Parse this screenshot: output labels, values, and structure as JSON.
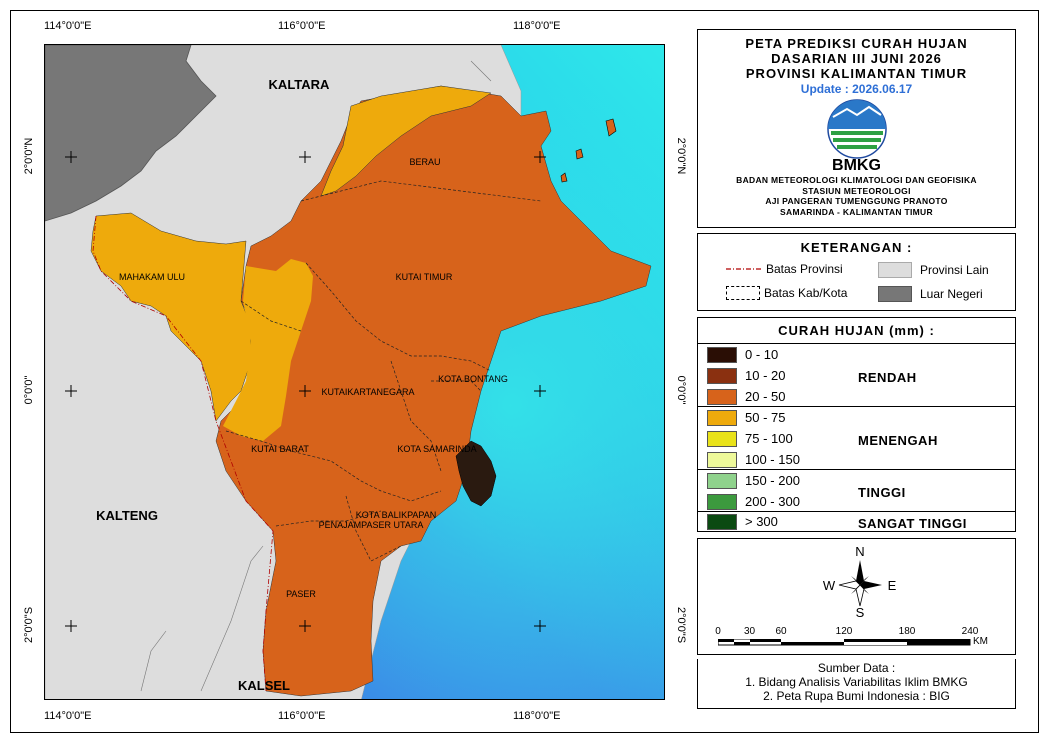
{
  "map": {
    "coords_top": [
      "114°0'0\"E",
      "116°0'0\"E",
      "118°0'0\"E"
    ],
    "coords_bottom": [
      "114°0'0\"E",
      "116°0'0\"E",
      "118°0'0\"E"
    ],
    "coords_left": [
      "2°0'0\"N",
      "0°0'0\"",
      "2°0'0\"S"
    ],
    "coords_right": [
      "2°0'0\"N",
      "0°0'0\"",
      "2°0'0\"S"
    ],
    "provinces": {
      "kaltara": "KALTARA",
      "kalteng": "KALTENG",
      "kalsel": "KALSEL"
    },
    "regencies": {
      "berau": "BERAU",
      "mahakam_ulu": "MAHAKAM ULU",
      "kutai_timur": "KUTAI TIMUR",
      "kutai_kartanegara": "KUTAIKARTANEGARA",
      "kota_bontang": "KOTA BONTANG",
      "kutai_barat": "KUTAI BARAT",
      "kota_samarinda": "KOTA SAMARINDA",
      "kota_balikpapan": "KOTA BALIKPAPAN",
      "penajam_paser_utara": "PENAJAMPASER UTARA",
      "paser": "PASER"
    },
    "colors": {
      "rain_20_50": "#d7631b",
      "rain_50_75": "#eeaa0c",
      "other_province": "#dddddd",
      "foreign_country": "#777777",
      "sea_deep": "#3b86e8",
      "sea_shallow": "#2ee8ea"
    }
  },
  "title": {
    "line1": "PETA PREDIKSI CURAH HUJAN",
    "line2": "DASARIAN III JUNI 2026",
    "line3": "PROVINSI KALIMANTAN TIMUR",
    "update": "Update : 2026.06.17",
    "logo_text": "BMKG",
    "inst1": "BADAN METEOROLOGI KLIMATOLOGI DAN GEOFISIKA",
    "inst2": "STASIUN METEOROLOGI",
    "inst3": "AJI PANGERAN TUMENGGUNG PRANOTO",
    "inst4": "SAMARINDA - KALIMANTAN TIMUR"
  },
  "keterangan": {
    "title": "KETERANGAN :",
    "batas_provinsi": "Batas Provinsi",
    "batas_kab": "Batas Kab/Kota",
    "provinsi_lain": "Provinsi Lain",
    "luar_negeri": "Luar Negeri"
  },
  "curah_hujan": {
    "title": "CURAH HUJAN (mm) :",
    "classes": [
      {
        "label": "0 - 10",
        "color": "#2a0e05"
      },
      {
        "label": "10 - 20",
        "color": "#8a3010"
      },
      {
        "label": "20 - 50",
        "color": "#d7631b"
      },
      {
        "label": "50 - 75",
        "color": "#eeaa0c"
      },
      {
        "label": "75 - 100",
        "color": "#e9e21a"
      },
      {
        "label": "100 - 150",
        "color": "#eef99a"
      },
      {
        "label": "150 - 200",
        "color": "#8fd28c"
      },
      {
        "label": "200 - 300",
        "color": "#3c9a3e"
      },
      {
        "label": "> 300",
        "color": "#0b4a12"
      }
    ],
    "categories": {
      "rendah": "RENDAH",
      "menengah": "MENENGAH",
      "tinggi": "TINGGI",
      "sangat_tinggi": "SANGAT TINGGI"
    }
  },
  "compass": {
    "n": "N",
    "s": "S",
    "e": "E",
    "w": "W"
  },
  "scale": {
    "ticks": [
      "0",
      "30",
      "60",
      "120",
      "180",
      "240"
    ],
    "unit": "KM"
  },
  "source": {
    "title": "Sumber Data :",
    "line1": "1. Bidang Analisis Variabilitas Iklim BMKG",
    "line2": "2. Peta Rupa Bumi Indonesia : BIG"
  }
}
